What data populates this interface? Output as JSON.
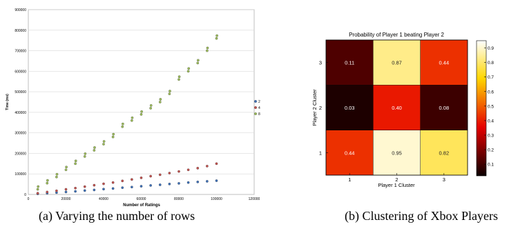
{
  "captions": {
    "a": "(a) Varying the number of rows",
    "b": "(b) Clustering of Xbox Players"
  },
  "chart_data": [
    {
      "type": "scatter",
      "title": "",
      "xlabel": "Number of Ratings",
      "ylabel": "Time (ms)",
      "xlim": [
        0,
        120000
      ],
      "ylim": [
        0,
        900000
      ],
      "xticks": [
        0,
        20000,
        40000,
        60000,
        80000,
        100000,
        120000
      ],
      "yticks": [
        0,
        100000,
        200000,
        300000,
        400000,
        500000,
        600000,
        700000,
        800000,
        900000
      ],
      "grid": true,
      "legend_position": "right",
      "series": [
        {
          "name": "2",
          "color": "#3d6fb6",
          "x": [
            5000,
            10000,
            15000,
            20000,
            25000,
            30000,
            35000,
            40000,
            45000,
            50000,
            55000,
            60000,
            65000,
            70000,
            75000,
            80000,
            85000,
            90000,
            95000,
            100000
          ],
          "y": [
            3000,
            6000,
            9000,
            12000,
            15000,
            19000,
            22000,
            26000,
            29000,
            33000,
            36000,
            40000,
            44000,
            47000,
            51000,
            54000,
            58000,
            61000,
            64000,
            67000
          ]
        },
        {
          "name": "4",
          "color": "#c0504d",
          "x": [
            5000,
            10000,
            15000,
            20000,
            25000,
            30000,
            35000,
            40000,
            45000,
            50000,
            55000,
            60000,
            65000,
            70000,
            75000,
            80000,
            85000,
            90000,
            95000,
            100000
          ],
          "y": [
            6000,
            12000,
            18000,
            25000,
            31000,
            38000,
            45000,
            52000,
            58000,
            66000,
            73000,
            81000,
            89000,
            96000,
            104000,
            112000,
            120000,
            128000,
            138000,
            150000
          ]
        },
        {
          "name": "8",
          "color": "#9bbb59",
          "x": [
            5000,
            10000,
            15000,
            20000,
            25000,
            30000,
            35000,
            40000,
            45000,
            50000,
            55000,
            60000,
            65000,
            70000,
            75000,
            80000,
            85000,
            90000,
            95000,
            100000
          ],
          "y": [
            25000,
            55000,
            85000,
            120000,
            150000,
            185000,
            215000,
            245000,
            280000,
            330000,
            360000,
            390000,
            420000,
            450000,
            490000,
            560000,
            600000,
            640000,
            700000,
            760000
          ]
        }
      ]
    },
    {
      "type": "heatmap",
      "title": "Probability of Player 1 beating Player 2",
      "xlabel": "Player 1 Cluster",
      "ylabel": "Player 2 Cluster",
      "x_categories": [
        "1",
        "2",
        "3"
      ],
      "y_categories": [
        "1",
        "2",
        "3"
      ],
      "values": [
        [
          0.44,
          0.95,
          0.82
        ],
        [
          0.03,
          0.4,
          0.08
        ],
        [
          0.11,
          0.87,
          0.44
        ]
      ],
      "labels": [
        [
          "0.44",
          "0.95",
          "0.82"
        ],
        [
          "0.03",
          "0.40",
          "0.08"
        ],
        [
          "0.11",
          "0.87",
          "0.44"
        ]
      ],
      "colorbar_ticks": [
        "0.1",
        "0.2",
        "0.3",
        "0.4",
        "0.5",
        "0.6",
        "0.7",
        "0.8",
        "0.9"
      ],
      "colormap": "hot"
    }
  ]
}
